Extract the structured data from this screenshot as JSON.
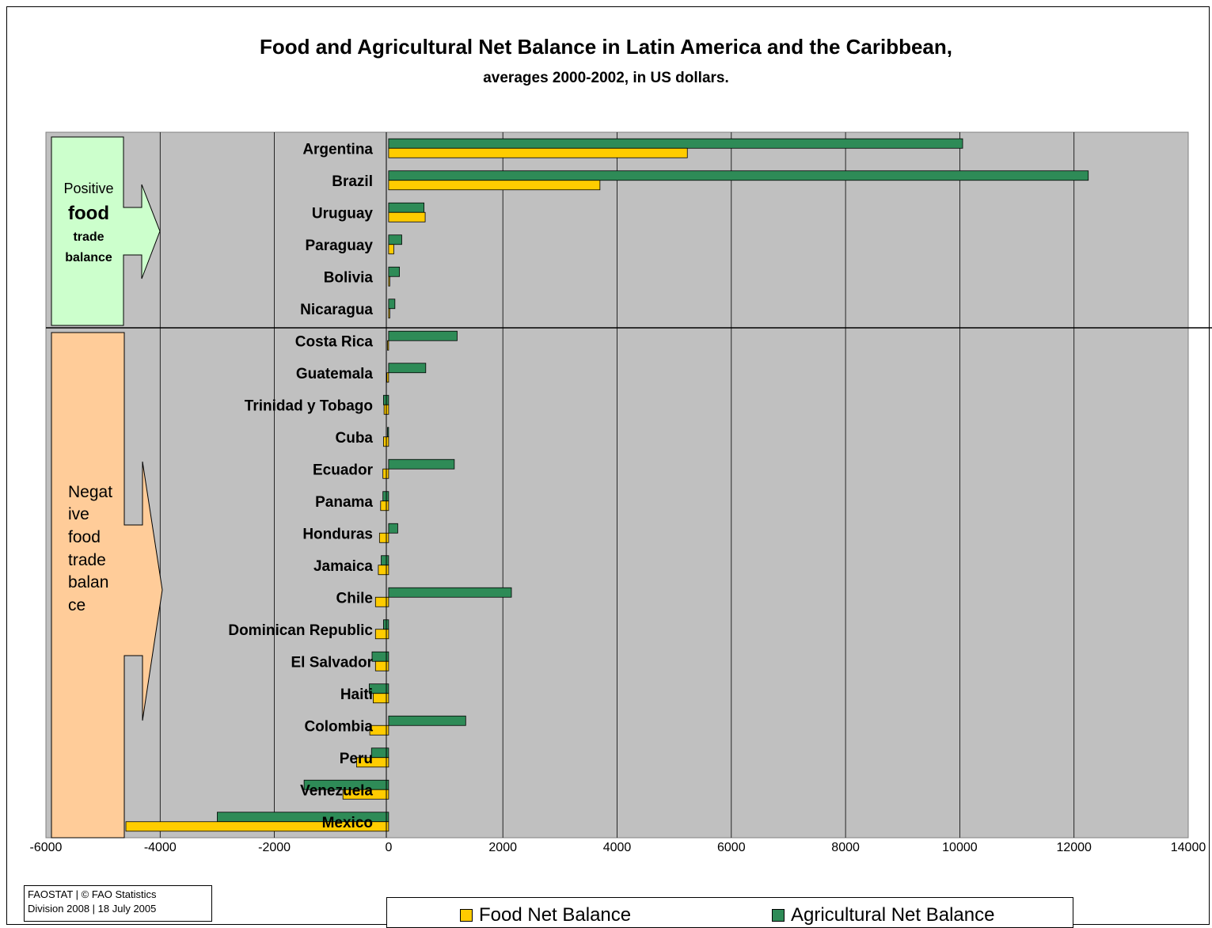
{
  "chart_data": {
    "type": "bar",
    "orientation": "horizontal",
    "title": "Food and Agricultural Net Balance in Latin America and the Caribbean,",
    "subtitle": "averages 2000-2002, in US dollars.",
    "xlabel": "",
    "ylabel": "",
    "xlim": [
      -6000,
      14000
    ],
    "x_ticks": [
      "-6000",
      "-4000",
      "-2000",
      "0",
      "2000",
      "4000",
      "6000",
      "8000",
      "10000",
      "12000",
      "14000"
    ],
    "grid": "vertical",
    "legend_position": "bottom",
    "categories": [
      "Argentina",
      "Brazil",
      "Uruguay",
      "Paraguay",
      "Bolivia",
      "Nicaragua",
      "Costa Rica",
      "Guatemala",
      "Trinidad y Tobago",
      "Cuba",
      "Ecuador",
      "Panama",
      "Honduras",
      "Jamaica",
      "Chile",
      "Dominican Republic",
      "El Salvador",
      "Haiti",
      "Colombia",
      "Peru",
      "Venezuela",
      "Mexico"
    ],
    "series": [
      {
        "name": "Agricultural Net Balance",
        "color": "#2e8b57",
        "values": [
          10050,
          12250,
          620,
          230,
          190,
          110,
          1200,
          650,
          -90,
          -20,
          1150,
          -100,
          160,
          -130,
          2150,
          -90,
          -290,
          -340,
          1350,
          -300,
          -1480,
          -3000
        ]
      },
      {
        "name": "Food Net Balance",
        "color": "#ffcc00",
        "values": [
          5230,
          3700,
          640,
          90,
          20,
          20,
          -20,
          -30,
          -80,
          -90,
          -100,
          -140,
          -160,
          -180,
          -230,
          -230,
          -230,
          -270,
          -330,
          -560,
          -800,
          -4600
        ]
      }
    ],
    "annotations": {
      "positive": {
        "line1": "Positive",
        "line2": "food",
        "line3": "trade",
        "line4": "balance"
      },
      "negative": {
        "lines": [
          "Negat",
          "ive",
          "food",
          "trade",
          "balan",
          "ce"
        ]
      }
    }
  },
  "source_note": {
    "line1": "FAOSTAT | © FAO Statistics",
    "line2": "Division 2008 | 18 July 2005"
  },
  "legend": {
    "food_label": "Food Net Balance",
    "agri_label": "Agricultural Net Balance",
    "food_color": "#ffcc00",
    "agri_color": "#2e8b57"
  },
  "colors": {
    "plot_background": "#c0c0c0",
    "positive_arrow": "#ccffcc",
    "negative_arrow": "#ffcc99"
  }
}
